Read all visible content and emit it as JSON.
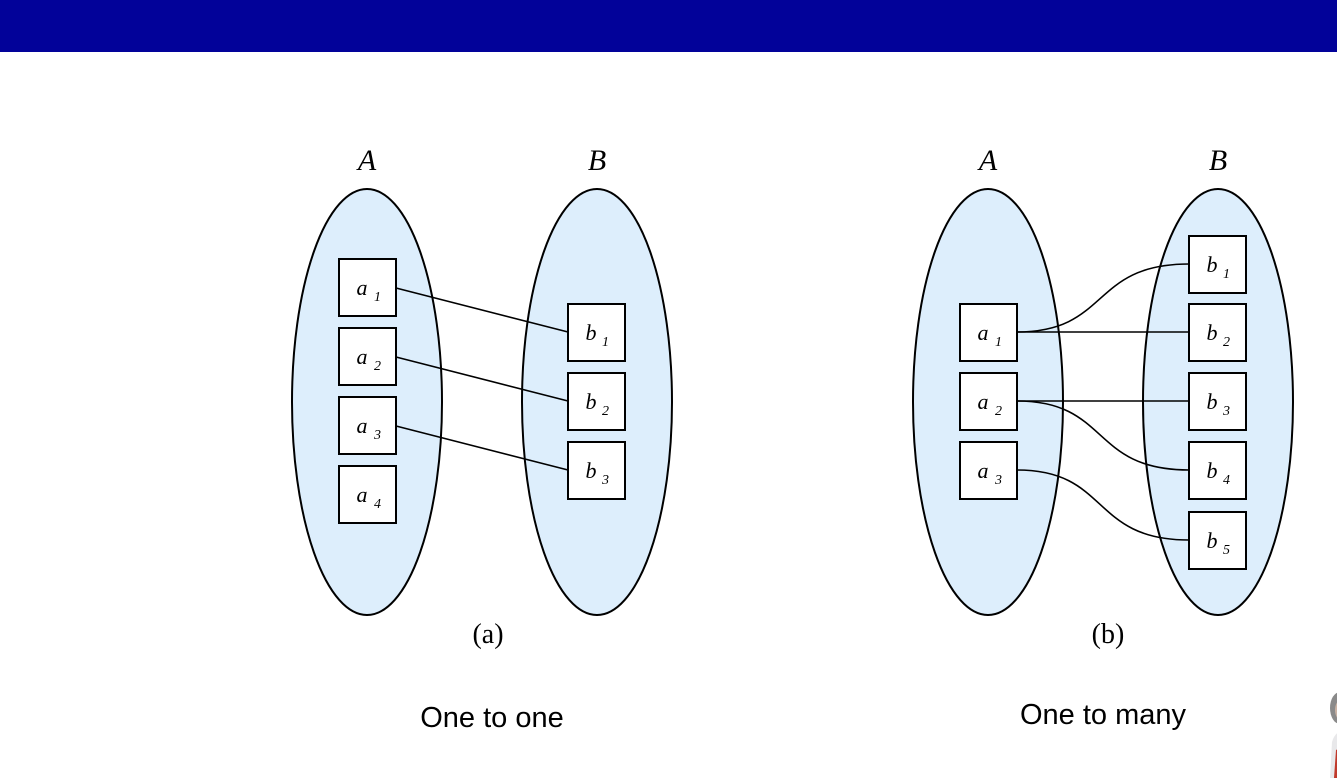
{
  "diagrams": [
    {
      "set_left": {
        "label": "A",
        "elements": [
          {
            "base": "a",
            "sub": "1"
          },
          {
            "base": "a",
            "sub": "2"
          },
          {
            "base": "a",
            "sub": "3"
          },
          {
            "base": "a",
            "sub": "4"
          }
        ]
      },
      "set_right": {
        "label": "B",
        "elements": [
          {
            "base": "b",
            "sub": "1"
          },
          {
            "base": "b",
            "sub": "2"
          },
          {
            "base": "b",
            "sub": "3"
          }
        ]
      },
      "mappings": [
        [
          0,
          0
        ],
        [
          1,
          1
        ],
        [
          2,
          2
        ]
      ],
      "figure_label": "(a)",
      "caption": "One to one"
    },
    {
      "set_left": {
        "label": "A",
        "elements": [
          {
            "base": "a",
            "sub": "1"
          },
          {
            "base": "a",
            "sub": "2"
          },
          {
            "base": "a",
            "sub": "3"
          }
        ]
      },
      "set_right": {
        "label": "B",
        "elements": [
          {
            "base": "b",
            "sub": "1"
          },
          {
            "base": "b",
            "sub": "2"
          },
          {
            "base": "b",
            "sub": "3"
          },
          {
            "base": "b",
            "sub": "4"
          },
          {
            "base": "b",
            "sub": "5"
          }
        ]
      },
      "mappings": [
        [
          0,
          0
        ],
        [
          0,
          1
        ],
        [
          1,
          2
        ],
        [
          1,
          3
        ],
        [
          2,
          4
        ]
      ],
      "figure_label": "(b)",
      "caption": "One to many"
    }
  ],
  "colors": {
    "header_bar": "#020299",
    "set_fill": "#ddeefc",
    "stroke": "#000000"
  }
}
